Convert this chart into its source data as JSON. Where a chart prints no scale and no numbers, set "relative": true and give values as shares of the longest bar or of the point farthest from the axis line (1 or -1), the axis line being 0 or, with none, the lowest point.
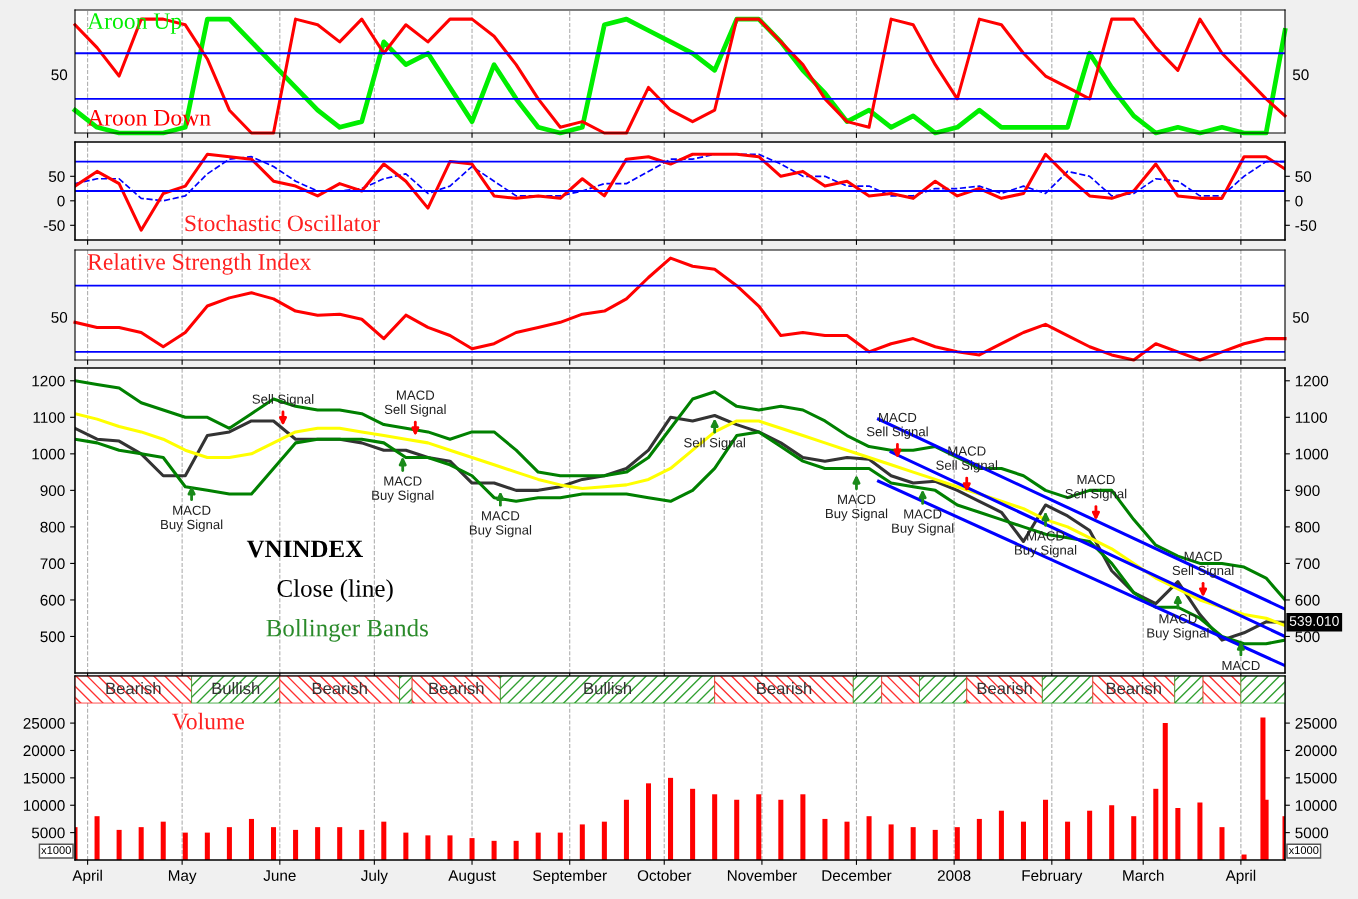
{
  "chart_data": [
    {
      "type": "line",
      "relative": true,
      "x": [
        "2007-03-28",
        "2007-04-04",
        "2007-04-11",
        "2007-04-18",
        "2007-04-25",
        "2007-05-02",
        "2007-05-09",
        "2007-05-16",
        "2007-05-23",
        "2007-05-30",
        "2007-06-06",
        "2007-06-13",
        "2007-06-20",
        "2007-06-27",
        "2007-07-04",
        "2007-07-11",
        "2007-07-18",
        "2007-07-25",
        "2007-08-01",
        "2007-08-08",
        "2007-08-15",
        "2007-08-22",
        "2007-08-29",
        "2007-09-05",
        "2007-09-12",
        "2007-09-19",
        "2007-09-26",
        "2007-10-03",
        "2007-10-10",
        "2007-10-17",
        "2007-10-24",
        "2007-10-31",
        "2007-11-07",
        "2007-11-14",
        "2007-11-21",
        "2007-11-28",
        "2007-12-05",
        "2007-12-12",
        "2007-12-19",
        "2007-12-26",
        "2008-01-02",
        "2008-01-09",
        "2008-01-16",
        "2008-01-23",
        "2008-01-30",
        "2008-02-06",
        "2008-02-13",
        "2008-02-20",
        "2008-02-27",
        "2008-03-05",
        "2008-03-12",
        "2008-03-19",
        "2008-03-26",
        "2008-04-02",
        "2008-04-09",
        "2008-04-15"
      ],
      "series": [
        {
          "name": "Aroon Up",
          "color": "#00ee00",
          "values": [
            0.2,
            0.05,
            0,
            0,
            0,
            0.05,
            1,
            1,
            0.8,
            0.6,
            0.4,
            0.2,
            0.05,
            0.1,
            0.8,
            0.6,
            0.7,
            0.4,
            0.1,
            0.6,
            0.3,
            0.05,
            0,
            0.05,
            0.95,
            1,
            0.9,
            0.8,
            0.7,
            0.55,
            1,
            1,
            0.8,
            0.55,
            0.35,
            0.1,
            0.2,
            0.05,
            0.15,
            0,
            0.05,
            0.2,
            0.05,
            0.05,
            0.05,
            0.05,
            0.7,
            0.4,
            0.15,
            0,
            0.05,
            0,
            0.05,
            0,
            0,
            0.9
          ]
        },
        {
          "name": "Aroon Down",
          "color": "#ff0000",
          "values": [
            0.95,
            0.75,
            0.5,
            1,
            1,
            0.95,
            0.65,
            0.2,
            0,
            0,
            1,
            0.95,
            0.8,
            1,
            0.7,
            0.95,
            0.8,
            1,
            1,
            0.85,
            0.6,
            0.3,
            0.05,
            0.1,
            0,
            0,
            0.4,
            0.2,
            0.1,
            0.2,
            1,
            1,
            0.8,
            0.6,
            0.3,
            0.1,
            0.05,
            1,
            0.95,
            0.6,
            0.3,
            1,
            0.95,
            0.7,
            0.5,
            0.4,
            0.3,
            1,
            1,
            0.75,
            0.55,
            1,
            0.7,
            0.5,
            0.3,
            0.15
          ]
        }
      ],
      "xlim": [
        "2007-03-28",
        "2008-04-15"
      ],
      "xticks": [
        {
          "value": "2007-04-01",
          "label": null
        },
        {
          "value": "2007-05-01",
          "label": null
        },
        {
          "value": "2007-06-01",
          "label": null
        },
        {
          "value": "2007-07-01",
          "label": null
        },
        {
          "value": "2007-08-01",
          "label": null
        },
        {
          "value": "2007-09-01",
          "label": null
        },
        {
          "value": "2007-10-01",
          "label": null
        },
        {
          "value": "2007-11-01",
          "label": null
        },
        {
          "value": "2007-12-01",
          "label": null
        },
        {
          "value": "2008-01-01",
          "label": null
        },
        {
          "value": "2008-02-01",
          "label": null
        },
        {
          "value": "2008-03-01",
          "label": null
        },
        {
          "value": "2008-04-01",
          "label": null
        }
      ],
      "tick_labels": false,
      "grid": "x",
      "annotations": [
        "50",
        "50"
      ],
      "ref_lines": [
        {
          "axis": "y",
          "value": 0.7,
          "color": "#0000ff"
        },
        {
          "axis": "y",
          "value": 0.3,
          "color": "#0000ff"
        }
      ]
    },
    {
      "type": "line",
      "title": "Stochastic Oscillator",
      "x": [
        "2007-03-28",
        "2007-04-04",
        "2007-04-11",
        "2007-04-18",
        "2007-04-25",
        "2007-05-02",
        "2007-05-09",
        "2007-05-16",
        "2007-05-23",
        "2007-05-30",
        "2007-06-06",
        "2007-06-13",
        "2007-06-20",
        "2007-06-27",
        "2007-07-04",
        "2007-07-11",
        "2007-07-18",
        "2007-07-25",
        "2007-08-01",
        "2007-08-08",
        "2007-08-15",
        "2007-08-22",
        "2007-08-29",
        "2007-09-05",
        "2007-09-12",
        "2007-09-19",
        "2007-09-26",
        "2007-10-03",
        "2007-10-10",
        "2007-10-17",
        "2007-10-24",
        "2007-10-31",
        "2007-11-07",
        "2007-11-14",
        "2007-11-21",
        "2007-11-28",
        "2007-12-05",
        "2007-12-12",
        "2007-12-19",
        "2007-12-26",
        "2008-01-02",
        "2008-01-09",
        "2008-01-16",
        "2008-01-23",
        "2008-01-30",
        "2008-02-06",
        "2008-02-13",
        "2008-02-20",
        "2008-02-27",
        "2008-03-05",
        "2008-03-12",
        "2008-03-19",
        "2008-03-26",
        "2008-04-02",
        "2008-04-09",
        "2008-04-15"
      ],
      "series": [
        {
          "color": "#0000ff",
          "line_style": "dashed",
          "values": [
            35,
            45,
            45,
            5,
            0,
            10,
            55,
            85,
            90,
            70,
            40,
            20,
            20,
            25,
            45,
            55,
            15,
            30,
            70,
            40,
            10,
            10,
            10,
            20,
            35,
            35,
            60,
            85,
            85,
            95,
            95,
            95,
            75,
            50,
            50,
            30,
            30,
            10,
            10,
            25,
            25,
            30,
            15,
            30,
            15,
            60,
            50,
            10,
            15,
            45,
            40,
            10,
            10,
            50,
            80,
            80
          ]
        },
        {
          "color": "#ff0000",
          "values": [
            30,
            60,
            35,
            -60,
            15,
            30,
            95,
            90,
            85,
            40,
            30,
            10,
            35,
            20,
            75,
            40,
            -15,
            80,
            75,
            10,
            5,
            10,
            5,
            45,
            10,
            85,
            90,
            75,
            95,
            95,
            95,
            90,
            50,
            60,
            30,
            40,
            10,
            15,
            5,
            40,
            10,
            25,
            5,
            15,
            95,
            50,
            10,
            5,
            20,
            75,
            10,
            5,
            5,
            90,
            90,
            65
          ]
        }
      ],
      "xlim": [
        "2007-03-28",
        "2008-04-15"
      ],
      "xticks": [
        {
          "value": "2007-04-01",
          "label": null
        },
        {
          "value": "2007-05-01",
          "label": null
        },
        {
          "value": "2007-06-01",
          "label": null
        },
        {
          "value": "2007-07-01",
          "label": null
        },
        {
          "value": "2007-08-01",
          "label": null
        },
        {
          "value": "2007-09-01",
          "label": null
        },
        {
          "value": "2007-10-01",
          "label": null
        },
        {
          "value": "2007-11-01",
          "label": null
        },
        {
          "value": "2007-12-01",
          "label": null
        },
        {
          "value": "2008-01-01",
          "label": null
        },
        {
          "value": "2008-02-01",
          "label": null
        },
        {
          "value": "2008-03-01",
          "label": null
        },
        {
          "value": "2008-04-01",
          "label": null
        }
      ],
      "ylim": [
        -80,
        120
      ],
      "yticks": [
        -50,
        0,
        50
      ],
      "y2lim": [
        -80,
        120
      ],
      "y2ticks": [
        -50,
        0,
        50
      ],
      "tick_labels": "y",
      "grid": "x",
      "ref_lines": [
        {
          "axis": "y",
          "value": 80,
          "color": "#0000ff"
        },
        {
          "axis": "y",
          "value": 20,
          "color": "#0000ff"
        }
      ]
    },
    {
      "type": "line",
      "relative": true,
      "title": "Relative Strength Index",
      "x": [
        "2007-03-28",
        "2007-04-04",
        "2007-04-11",
        "2007-04-18",
        "2007-04-25",
        "2007-05-02",
        "2007-05-09",
        "2007-05-16",
        "2007-05-23",
        "2007-05-30",
        "2007-06-06",
        "2007-06-13",
        "2007-06-20",
        "2007-06-27",
        "2007-07-04",
        "2007-07-11",
        "2007-07-18",
        "2007-07-25",
        "2007-08-01",
        "2007-08-08",
        "2007-08-15",
        "2007-08-22",
        "2007-08-29",
        "2007-09-05",
        "2007-09-12",
        "2007-09-19",
        "2007-09-26",
        "2007-10-03",
        "2007-10-10",
        "2007-10-17",
        "2007-10-24",
        "2007-10-31",
        "2007-11-07",
        "2007-11-14",
        "2007-11-21",
        "2007-11-28",
        "2007-12-05",
        "2007-12-12",
        "2007-12-19",
        "2007-12-26",
        "2008-01-02",
        "2008-01-09",
        "2008-01-16",
        "2008-01-23",
        "2008-01-30",
        "2008-02-06",
        "2008-02-13",
        "2008-02-20",
        "2008-02-27",
        "2008-03-05",
        "2008-03-12",
        "2008-03-19",
        "2008-03-26",
        "2008-04-02",
        "2008-04-09",
        "2008-04-15"
      ],
      "series": [
        {
          "color": "#ff0000",
          "values": [
            0.37,
            0.32,
            0.32,
            0.27,
            0.13,
            0.27,
            0.53,
            0.61,
            0.66,
            0.6,
            0.48,
            0.44,
            0.45,
            0.4,
            0.21,
            0.44,
            0.32,
            0.24,
            0.11,
            0.16,
            0.27,
            0.32,
            0.37,
            0.45,
            0.48,
            0.6,
            0.81,
            1,
            0.92,
            0.89,
            0.73,
            0.53,
            0.24,
            0.27,
            0.24,
            0.24,
            0.08,
            0.16,
            0.21,
            0.13,
            0.08,
            0.05,
            0.16,
            0.27,
            0.35,
            0.24,
            0.13,
            0.05,
            0,
            0.16,
            0.08,
            0,
            0.08,
            0.16,
            0.21,
            0.21
          ]
        }
      ],
      "xlim": [
        "2007-03-28",
        "2008-04-15"
      ],
      "xticks": [
        {
          "value": "2007-04-01",
          "label": null
        },
        {
          "value": "2007-05-01",
          "label": null
        },
        {
          "value": "2007-06-01",
          "label": null
        },
        {
          "value": "2007-07-01",
          "label": null
        },
        {
          "value": "2007-08-01",
          "label": null
        },
        {
          "value": "2007-09-01",
          "label": null
        },
        {
          "value": "2007-10-01",
          "label": null
        },
        {
          "value": "2007-11-01",
          "label": null
        },
        {
          "value": "2007-12-01",
          "label": null
        },
        {
          "value": "2008-01-01",
          "label": null
        },
        {
          "value": "2008-02-01",
          "label": null
        },
        {
          "value": "2008-03-01",
          "label": null
        },
        {
          "value": "2008-04-01",
          "label": null
        }
      ],
      "tick_labels": false,
      "grid": "x",
      "annotations": [
        "50",
        "50"
      ],
      "ref_lines": [
        {
          "axis": "y",
          "value": 0.73,
          "color": "#0000ff"
        },
        {
          "axis": "y",
          "value": 0.08,
          "color": "#0000ff"
        }
      ]
    },
    {
      "type": "line",
      "x": [
        "2007-03-28",
        "2007-04-04",
        "2007-04-11",
        "2007-04-18",
        "2007-04-25",
        "2007-05-02",
        "2007-05-09",
        "2007-05-16",
        "2007-05-23",
        "2007-05-30",
        "2007-06-06",
        "2007-06-13",
        "2007-06-20",
        "2007-06-27",
        "2007-07-04",
        "2007-07-11",
        "2007-07-18",
        "2007-07-25",
        "2007-08-01",
        "2007-08-08",
        "2007-08-15",
        "2007-08-22",
        "2007-08-29",
        "2007-09-05",
        "2007-09-12",
        "2007-09-19",
        "2007-09-26",
        "2007-10-03",
        "2007-10-10",
        "2007-10-17",
        "2007-10-24",
        "2007-10-31",
        "2007-11-07",
        "2007-11-14",
        "2007-11-21",
        "2007-11-28",
        "2007-12-05",
        "2007-12-12",
        "2007-12-19",
        "2007-12-26",
        "2008-01-02",
        "2008-01-09",
        "2008-01-16",
        "2008-01-23",
        "2008-01-30",
        "2008-02-06",
        "2008-02-13",
        "2008-02-20",
        "2008-02-27",
        "2008-03-05",
        "2008-03-12",
        "2008-03-19",
        "2008-03-26",
        "2008-04-02",
        "2008-04-09",
        "2008-04-15"
      ],
      "series": [
        {
          "color": "#333333",
          "values": [
            1070,
            1040,
            1035,
            1000,
            940,
            940,
            1050,
            1060,
            1090,
            1090,
            1040,
            1040,
            1040,
            1030,
            1010,
            1010,
            990,
            980,
            920,
            920,
            900,
            900,
            910,
            930,
            940,
            960,
            1010,
            1100,
            1090,
            1105,
            1080,
            1060,
            1030,
            990,
            980,
            990,
            985,
            940,
            920,
            925,
            900,
            870,
            840,
            760,
            860,
            830,
            790,
            680,
            620,
            590,
            650,
            560,
            490,
            510,
            540,
            539.01
          ],
          "value_labels": [
            null,
            null,
            null,
            null,
            null,
            null,
            null,
            null,
            null,
            null,
            null,
            null,
            null,
            null,
            null,
            null,
            null,
            null,
            null,
            null,
            null,
            null,
            null,
            null,
            null,
            null,
            null,
            null,
            null,
            null,
            null,
            null,
            null,
            null,
            null,
            null,
            null,
            null,
            null,
            null,
            null,
            null,
            null,
            null,
            null,
            null,
            null,
            null,
            null,
            null,
            null,
            null,
            null,
            null,
            null,
            "539.010"
          ]
        },
        {
          "color": "#ffff00",
          "values": [
            1110,
            1095,
            1075,
            1060,
            1040,
            1010,
            990,
            990,
            1000,
            1030,
            1060,
            1070,
            1070,
            1060,
            1050,
            1040,
            1030,
            1010,
            990,
            970,
            950,
            930,
            915,
            905,
            910,
            915,
            930,
            960,
            1010,
            1060,
            1090,
            1090,
            1070,
            1050,
            1030,
            1010,
            990,
            970,
            950,
            930,
            910,
            890,
            870,
            850,
            820,
            800,
            770,
            740,
            700,
            660,
            630,
            600,
            580,
            560,
            550,
            530
          ]
        },
        {
          "color": "#008000",
          "values": [
            1200,
            1190,
            1180,
            1140,
            1120,
            1100,
            1100,
            1070,
            1110,
            1150,
            1130,
            1120,
            1120,
            1110,
            1080,
            1070,
            1060,
            1040,
            1060,
            1060,
            1010,
            950,
            940,
            940,
            940,
            950,
            990,
            1070,
            1150,
            1170,
            1130,
            1120,
            1130,
            1120,
            1090,
            1050,
            1020,
            1010,
            1010,
            1020,
            990,
            960,
            960,
            940,
            900,
            880,
            900,
            900,
            820,
            750,
            720,
            700,
            700,
            690,
            660,
            600
          ]
        },
        {
          "color": "#008000",
          "values": [
            1040,
            1030,
            1010,
            1000,
            990,
            910,
            900,
            890,
            890,
            960,
            1030,
            1040,
            1040,
            1040,
            1030,
            990,
            990,
            970,
            940,
            880,
            870,
            880,
            880,
            890,
            890,
            890,
            880,
            870,
            900,
            960,
            1050,
            1060,
            1020,
            980,
            960,
            960,
            960,
            920,
            910,
            900,
            860,
            840,
            820,
            800,
            780,
            770,
            760,
            700,
            620,
            580,
            580,
            550,
            500,
            480,
            480,
            490
          ]
        },
        {
          "color": "#0000ff",
          "x": [
            "2007-12-08",
            "2008-04-15"
          ],
          "values": [
            1095,
            575
          ]
        },
        {
          "color": "#0000ff",
          "x": [
            "2007-12-12",
            "2008-04-15"
          ],
          "values": [
            1005,
            500
          ]
        },
        {
          "color": "#0000ff",
          "x": [
            "2007-12-08",
            "2008-04-15"
          ],
          "values": [
            925,
            420
          ]
        }
      ],
      "xlim": [
        "2007-03-28",
        "2008-04-15"
      ],
      "xticks": [
        {
          "value": "2007-04-01",
          "label": null
        },
        {
          "value": "2007-05-01",
          "label": null
        },
        {
          "value": "2007-06-01",
          "label": null
        },
        {
          "value": "2007-07-01",
          "label": null
        },
        {
          "value": "2007-08-01",
          "label": null
        },
        {
          "value": "2007-09-01",
          "label": null
        },
        {
          "value": "2007-10-01",
          "label": null
        },
        {
          "value": "2007-11-01",
          "label": null
        },
        {
          "value": "2007-12-01",
          "label": null
        },
        {
          "value": "2008-01-01",
          "label": null
        },
        {
          "value": "2008-02-01",
          "label": null
        },
        {
          "value": "2008-03-01",
          "label": null
        },
        {
          "value": "2008-04-01",
          "label": null
        }
      ],
      "ylim": [
        400,
        1235
      ],
      "yticks": [
        500,
        600,
        700,
        800,
        900,
        1000,
        1100,
        1200
      ],
      "y2lim": [
        400,
        1235
      ],
      "y2ticks": [
        500,
        600,
        700,
        800,
        900,
        1000,
        1100,
        1200
      ],
      "tick_labels": "y",
      "grid": "x",
      "annotations": [
        "VNINDEX",
        "Close (line)",
        "Bollinger Bands",
        {
          "text": "MACD\nBuy Signal",
          "x": "2007-05-04",
          "y": 920
        },
        {
          "text": "Sell Signal",
          "x": "2007-06-02",
          "y": 1069
        },
        {
          "text": "MACD\nBuy Signal",
          "x": "2007-07-10",
          "y": 1000
        },
        {
          "text": "MACD\nSell Signal",
          "x": "2007-07-14",
          "y": 1041
        },
        {
          "text": "MACD\nBuy Signal",
          "x": "2007-08-10",
          "y": 905
        },
        {
          "text": "Sell Signal",
          "x": "2007-10-17",
          "y": 1105
        },
        {
          "text": "MACD\nBuy Signal",
          "x": "2007-12-01",
          "y": 950
        },
        {
          "text": "MACD\nSell Signal",
          "x": "2007-12-14",
          "y": 980
        },
        {
          "text": "MACD\nBuy Signal",
          "x": "2007-12-22",
          "y": 910
        },
        {
          "text": "MACD\nSell Signal",
          "x": "2008-01-05",
          "y": 888
        },
        {
          "text": "MACD\nBuy Signal",
          "x": "2008-01-30",
          "y": 850
        },
        {
          "text": "MACD\nSell Signal",
          "x": "2008-02-15",
          "y": 810
        },
        {
          "text": "MACD\nBuy Signal",
          "x": "2008-03-12",
          "y": 623
        },
        {
          "text": "MACD\nSell Signal",
          "x": "2008-03-20",
          "y": 600
        },
        {
          "text": "MACD",
          "x": "2008-04-01",
          "y": 495
        }
      ]
    },
    {
      "type": "bar",
      "title": "Volume",
      "bands": [
        {
          "axis": "x",
          "from": "2007-03-28",
          "to": "2007-05-04",
          "label": "Bearish",
          "color": "#ff3030"
        },
        {
          "axis": "x",
          "from": "2007-05-04",
          "to": "2007-06-01",
          "label": "Bullish",
          "color": "#30a030"
        },
        {
          "axis": "x",
          "from": "2007-06-01",
          "to": "2007-07-09",
          "label": "Bearish",
          "color": "#ff3030"
        },
        {
          "axis": "x",
          "from": "2007-07-09",
          "to": "2007-07-13",
          "color": "#30a030"
        },
        {
          "axis": "x",
          "from": "2007-07-13",
          "to": "2007-08-10",
          "label": "Bearish",
          "color": "#ff3030"
        },
        {
          "axis": "x",
          "from": "2007-08-10",
          "to": "2007-10-17",
          "label": "Bullish",
          "color": "#30a030"
        },
        {
          "axis": "x",
          "from": "2007-10-17",
          "to": "2007-11-30",
          "label": "Bearish",
          "color": "#ff3030"
        },
        {
          "axis": "x",
          "from": "2007-11-30",
          "to": "2007-12-09",
          "color": "#30a030"
        },
        {
          "axis": "x",
          "from": "2007-12-09",
          "to": "2007-12-21",
          "color": "#ff3030"
        },
        {
          "axis": "x",
          "from": "2007-12-21",
          "to": "2008-01-05",
          "color": "#30a030"
        },
        {
          "axis": "x",
          "from": "2008-01-05",
          "to": "2008-01-29",
          "label": "Bearish",
          "color": "#ff3030"
        },
        {
          "axis": "x",
          "from": "2008-01-29",
          "to": "2008-02-14",
          "color": "#30a030"
        },
        {
          "axis": "x",
          "from": "2008-02-14",
          "to": "2008-03-11",
          "label": "Bearish",
          "color": "#ff3030"
        },
        {
          "axis": "x",
          "from": "2008-03-11",
          "to": "2008-03-20",
          "color": "#30a030"
        },
        {
          "axis": "x",
          "from": "2008-03-20",
          "to": "2008-04-01",
          "color": "#ff3030"
        },
        {
          "axis": "x",
          "from": "2008-04-01",
          "to": "2008-04-15",
          "color": "#30a030"
        }
      ],
      "x": [
        "2007-03-28",
        "2007-04-04",
        "2007-04-11",
        "2007-04-18",
        "2007-04-25",
        "2007-05-02",
        "2007-05-09",
        "2007-05-16",
        "2007-05-23",
        "2007-05-30",
        "2007-06-06",
        "2007-06-13",
        "2007-06-20",
        "2007-06-27",
        "2007-07-04",
        "2007-07-11",
        "2007-07-18",
        "2007-07-25",
        "2007-08-01",
        "2007-08-08",
        "2007-08-15",
        "2007-08-22",
        "2007-08-29",
        "2007-09-05",
        "2007-09-12",
        "2007-09-19",
        "2007-09-26",
        "2007-10-03",
        "2007-10-10",
        "2007-10-17",
        "2007-10-24",
        "2007-10-31",
        "2007-11-07",
        "2007-11-14",
        "2007-11-21",
        "2007-11-28",
        "2007-12-05",
        "2007-12-12",
        "2007-12-19",
        "2007-12-26",
        "2008-01-02",
        "2008-01-09",
        "2008-01-16",
        "2008-01-23",
        "2008-01-30",
        "2008-02-06",
        "2008-02-13",
        "2008-02-20",
        "2008-02-27",
        "2008-03-05",
        "2008-03-08",
        "2008-03-12",
        "2008-03-19",
        "2008-03-26",
        "2008-04-02",
        "2008-04-08",
        "2008-04-09",
        "2008-04-15"
      ],
      "series": [
        {
          "color": "#ff0000",
          "values": [
            6000,
            8000,
            5500,
            6000,
            7000,
            5000,
            5000,
            6000,
            7500,
            6000,
            5500,
            6000,
            6000,
            5500,
            7000,
            5000,
            4500,
            4500,
            4000,
            3500,
            3500,
            5000,
            5000,
            6500,
            7000,
            11000,
            14000,
            15000,
            13000,
            12000,
            11000,
            12000,
            11000,
            12000,
            7500,
            7000,
            8000,
            6500,
            6000,
            5500,
            6000,
            7500,
            9000,
            7000,
            11000,
            7000,
            9000,
            10000,
            8000,
            13000,
            25000,
            9500,
            10500,
            6000,
            1000,
            26000,
            11000,
            8000
          ]
        }
      ],
      "xlim": [
        "2007-03-28",
        "2008-04-15"
      ],
      "xticks": [
        {
          "value": "2007-04-01",
          "label": "April"
        },
        {
          "value": "2007-05-01",
          "label": "May"
        },
        {
          "value": "2007-06-01",
          "label": "June"
        },
        {
          "value": "2007-07-01",
          "label": "July"
        },
        {
          "value": "2007-08-01",
          "label": "August"
        },
        {
          "value": "2007-09-01",
          "label": "September"
        },
        {
          "value": "2007-10-01",
          "label": "October"
        },
        {
          "value": "2007-11-01",
          "label": "November"
        },
        {
          "value": "2007-12-01",
          "label": "December"
        },
        {
          "value": "2008-01-01",
          "label": "2008"
        },
        {
          "value": "2008-02-01",
          "label": "February"
        },
        {
          "value": "2008-03-01",
          "label": "March"
        },
        {
          "value": "2008-04-01",
          "label": "April"
        }
      ],
      "ylim": [
        0,
        33600
      ],
      "yticks": [
        5000,
        10000,
        15000,
        20000,
        25000
      ],
      "y2lim": [
        0,
        33600
      ],
      "y2ticks": [
        5000,
        10000,
        15000,
        20000,
        25000
      ],
      "grid": "x",
      "annotations": [
        "x1000",
        "x1000"
      ]
    }
  ]
}
